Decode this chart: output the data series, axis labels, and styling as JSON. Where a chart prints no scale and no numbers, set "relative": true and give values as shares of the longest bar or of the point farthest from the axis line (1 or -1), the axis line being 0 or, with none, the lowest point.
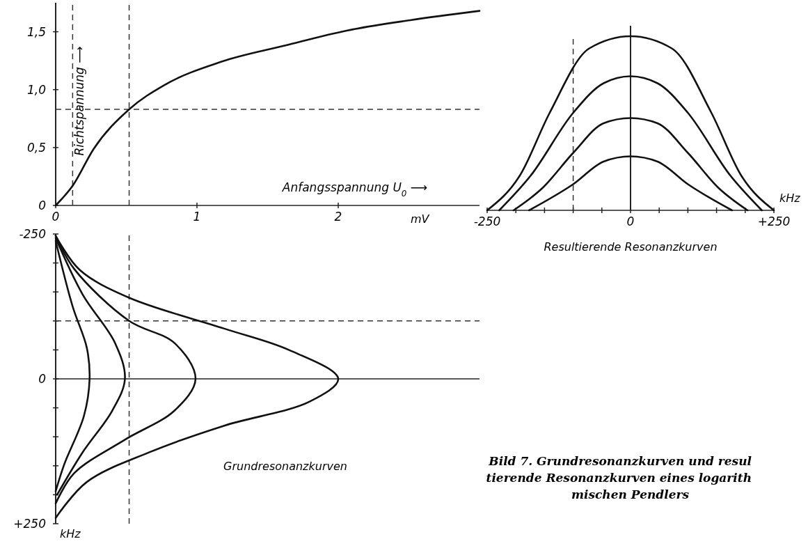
{
  "chart_data": [
    {
      "type": "line",
      "xlabel": "Anfangsspannung U$_{0}$ ⟶",
      "ylabel": "Richtspannung ⟶",
      "xlim": [
        0,
        3
      ],
      "ylim": [
        0,
        1.75
      ],
      "xticks": [
        0,
        1,
        2
      ],
      "yticks": [
        0,
        {
          "value": 0.5,
          "label": "0,5"
        },
        {
          "value": 1,
          "label": "1,0"
        },
        {
          "value": 1.5,
          "label": "1,5"
        }
      ],
      "annotations": [
        "mV"
      ],
      "series": [
        {
          "color": "#111111",
          "x": [
            0,
            0.12,
            0.27,
            0.52,
            0.77,
            1.17,
            1.62,
            2.06,
            2.51,
            3.0
          ],
          "values": [
            0,
            0.17,
            0.49,
            0.83,
            1.04,
            1.24,
            1.38,
            1.51,
            1.6,
            1.68
          ]
        }
      ],
      "ref_lines": [
        {
          "axis": "x",
          "value": 0.12,
          "line_style": "dashed"
        },
        {
          "axis": "x",
          "value": 0.52,
          "line_style": "dashed"
        },
        {
          "axis": "y",
          "value": 0.83,
          "line_style": "dashed"
        }
      ]
    },
    {
      "type": "line",
      "title": "Grundresonanzkurven",
      "xlim": [
        0,
        3
      ],
      "ylim": [
        250,
        -250
      ],
      "tick_labels": "y",
      "yticks": [
        {
          "value": -250,
          "label": "-250"
        },
        {
          "value": -200,
          "label": null
        },
        {
          "value": -150,
          "label": null
        },
        {
          "value": -100,
          "label": null
        },
        {
          "value": -50,
          "label": null
        },
        0,
        {
          "value": 50,
          "label": null
        },
        {
          "value": 100,
          "label": null
        },
        {
          "value": 150,
          "label": null
        },
        {
          "value": 200,
          "label": null
        },
        {
          "value": 250,
          "label": "+250"
        }
      ],
      "annotations": [
        "kHz",
        "Bild 7. Grundresonanzkurven und resul\ntierende Resonanzkurven eines logarith\nmischen Pendlers"
      ],
      "series": [
        {
          "color": "#111111",
          "x": [
            0,
            0.17,
            0.52,
            1.19,
            1.65,
            2.0,
            1.8,
            1.19,
            0.66,
            0.22,
            0
          ],
          "values": [
            -247,
            -188,
            -140,
            -87,
            -50,
            0,
            39,
            81,
            127,
            178,
            240
          ]
        },
        {
          "color": "#111111",
          "x": [
            0,
            0.13,
            0.52,
            0.84,
            0.99,
            0.84,
            0.49,
            0.13,
            0
          ],
          "values": [
            -247,
            -190,
            -100,
            -62,
            0,
            55,
            105,
            163,
            215
          ]
        },
        {
          "color": "#111111",
          "x": [
            0,
            0.19,
            0.42,
            0.49,
            0.4,
            0.19,
            0.01
          ],
          "values": [
            -243,
            -146,
            -62,
            0,
            55,
            127,
            200
          ]
        },
        {
          "color": "#111111",
          "x": [
            0,
            0.12,
            0.22,
            0.24,
            0.2,
            0.06,
            0
          ],
          "values": [
            -238,
            -125,
            -54,
            0,
            64,
            148,
            194
          ]
        }
      ],
      "ref_lines": [
        {
          "axis": "x",
          "value": 0.52,
          "line_style": "dashed"
        },
        {
          "axis": "y",
          "value": -100,
          "line_style": "dashed"
        }
      ]
    },
    {
      "type": "line",
      "title": "Resultierende Resonanzkurven",
      "relative": true,
      "xlim": [
        -250,
        250
      ],
      "xticks": [
        {
          "value": -250,
          "label": "-250"
        },
        {
          "value": -200,
          "label": null
        },
        {
          "value": -150,
          "label": null
        },
        {
          "value": -100,
          "label": null
        },
        {
          "value": -50,
          "label": null
        },
        0,
        {
          "value": 50,
          "label": null
        },
        {
          "value": 100,
          "label": null
        },
        {
          "value": 150,
          "label": null
        },
        {
          "value": 200,
          "label": null
        },
        {
          "value": 250,
          "label": "+250"
        }
      ],
      "annotations": [
        "kHz"
      ],
      "series": [
        {
          "color": "#111111",
          "x": [
            -250,
            -193,
            -141,
            -72,
            0,
            72,
            141,
            193,
            250
          ],
          "values": [
            0,
            0.2,
            0.56,
            0.93,
            1,
            0.93,
            0.56,
            0.2,
            0
          ]
        },
        {
          "color": "#111111",
          "x": [
            -229,
            -174,
            -100,
            -47,
            0,
            47,
            100,
            174,
            229
          ],
          "values": [
            0,
            0.2,
            0.56,
            0.73,
            0.77,
            0.73,
            0.56,
            0.2,
            0
          ]
        },
        {
          "color": "#111111",
          "x": [
            -204,
            -153,
            -100,
            -47,
            0,
            47,
            100,
            153,
            204
          ],
          "values": [
            0,
            0.13,
            0.33,
            0.5,
            0.53,
            0.5,
            0.33,
            0.13,
            0
          ]
        },
        {
          "color": "#111111",
          "x": [
            -177,
            -100,
            -47,
            0,
            47,
            100,
            177
          ],
          "values": [
            0,
            0.15,
            0.28,
            0.31,
            0.28,
            0.15,
            0
          ]
        }
      ],
      "ref_lines": [
        {
          "axis": "x",
          "value": -100,
          "line_style": "dashed"
        }
      ]
    }
  ]
}
